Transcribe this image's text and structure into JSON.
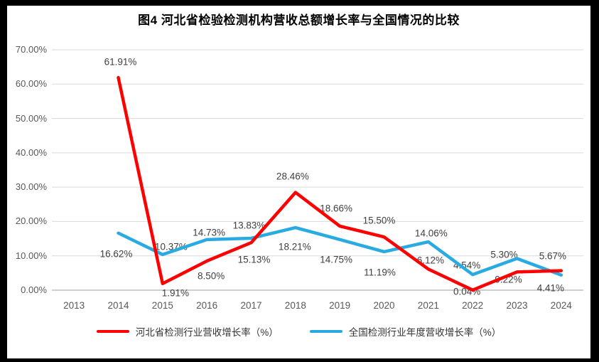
{
  "title": "图4 河北省检验检测机构营收总额增长率与全国情况的比较",
  "chart_data": {
    "type": "line",
    "title": "图4 河北省检验检测机构营收总额增长率与全国情况的比较",
    "x": [
      "2013",
      "2014",
      "2015",
      "2016",
      "2017",
      "2018",
      "2019",
      "2020",
      "2021",
      "2022",
      "2023",
      "2024"
    ],
    "ylim": [
      0,
      70
    ],
    "ytick_step": 10,
    "ytick_labels": [
      "0.00%",
      "10.00%",
      "20.00%",
      "30.00%",
      "40.00%",
      "50.00%",
      "60.00%",
      "70.00%"
    ],
    "grid": true,
    "legend_position": "bottom",
    "colors": {
      "gridline": "#D9D9D9",
      "axis_line": "#BFBFBF",
      "tick_text": "#595959",
      "data_label_text": "#404040"
    },
    "series": [
      {
        "name": "河北省检测行业营收增长率（%）",
        "color": "#FF0000",
        "values": [
          null,
          61.91,
          1.91,
          8.5,
          13.83,
          28.46,
          18.66,
          15.5,
          6.12,
          0.04,
          5.3,
          5.67
        ],
        "point_labels": [
          "",
          "61.91%",
          "1.91%",
          "8.50%",
          "13.83%",
          "28.46%",
          "18.66%",
          "15.50%",
          "6.12%",
          "0.04%",
          "5.30%",
          "5.67%"
        ],
        "label_offsets": [
          [
            0,
            0
          ],
          [
            3,
            -22
          ],
          [
            18,
            13
          ],
          [
            6,
            21
          ],
          [
            -3,
            -24
          ],
          [
            -4,
            -23
          ],
          [
            -5,
            -25
          ],
          [
            -7,
            -23
          ],
          [
            3,
            -12
          ],
          [
            -8,
            2
          ],
          [
            -18,
            -24
          ],
          [
            -12,
            -21
          ]
        ]
      },
      {
        "name": "全国检测行业年度营收增长率（%）",
        "color": "#29ABE2",
        "values": [
          null,
          16.62,
          10.37,
          14.73,
          15.13,
          18.21,
          14.75,
          11.19,
          14.06,
          4.54,
          9.22,
          4.41
        ],
        "point_labels": [
          "",
          "16.62%",
          "10.37%",
          "14.73%",
          "15.13%",
          "18.21%",
          "14.75%",
          "11.19%",
          "14.06%",
          "4.54%",
          "9.22%",
          "4.41%"
        ],
        "label_offsets": [
          [
            0,
            0
          ],
          [
            -3,
            29
          ],
          [
            12,
            -11
          ],
          [
            3,
            -10
          ],
          [
            4,
            30
          ],
          [
            -1,
            27
          ],
          [
            -5,
            28
          ],
          [
            -6,
            29
          ],
          [
            4,
            -12
          ],
          [
            -8,
            -13
          ],
          [
            -12,
            30
          ],
          [
            -15,
            18
          ]
        ]
      }
    ]
  }
}
